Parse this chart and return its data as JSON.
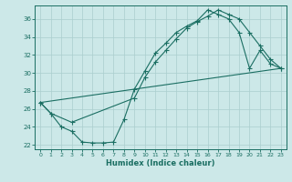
{
  "xlabel": "Humidex (Indice chaleur)",
  "bg_color": "#cce8e8",
  "grid_color": "#aacece",
  "line_color": "#1a6e62",
  "xlim": [
    -0.5,
    23.5
  ],
  "ylim": [
    21.5,
    37.5
  ],
  "xticks": [
    0,
    1,
    2,
    3,
    4,
    5,
    6,
    7,
    8,
    9,
    10,
    11,
    12,
    13,
    14,
    15,
    16,
    17,
    18,
    19,
    20,
    21,
    22,
    23
  ],
  "yticks": [
    22,
    24,
    26,
    28,
    30,
    32,
    34,
    36
  ],
  "line1_x": [
    0,
    1,
    2,
    3,
    4,
    5,
    6,
    7,
    8,
    9,
    10,
    11,
    12,
    13,
    14,
    15,
    16,
    17,
    18,
    19,
    20,
    21,
    22,
    23
  ],
  "line1_y": [
    26.7,
    25.5,
    24.0,
    23.5,
    22.3,
    22.2,
    22.2,
    22.3,
    24.8,
    28.2,
    30.2,
    32.2,
    33.3,
    34.5,
    35.2,
    35.8,
    37.0,
    36.5,
    36.0,
    34.5,
    30.5,
    32.5,
    31.0,
    30.5
  ],
  "line2_x": [
    0,
    1,
    3,
    9,
    10,
    11,
    12,
    13,
    14,
    15,
    16,
    17,
    18,
    19,
    20,
    21,
    22,
    23
  ],
  "line2_y": [
    26.7,
    25.5,
    24.5,
    27.2,
    29.5,
    31.2,
    32.5,
    33.8,
    35.0,
    35.7,
    36.3,
    37.0,
    36.5,
    36.0,
    34.5,
    33.0,
    31.5,
    30.5
  ],
  "line3_x": [
    0,
    23
  ],
  "line3_y": [
    26.7,
    30.5
  ]
}
